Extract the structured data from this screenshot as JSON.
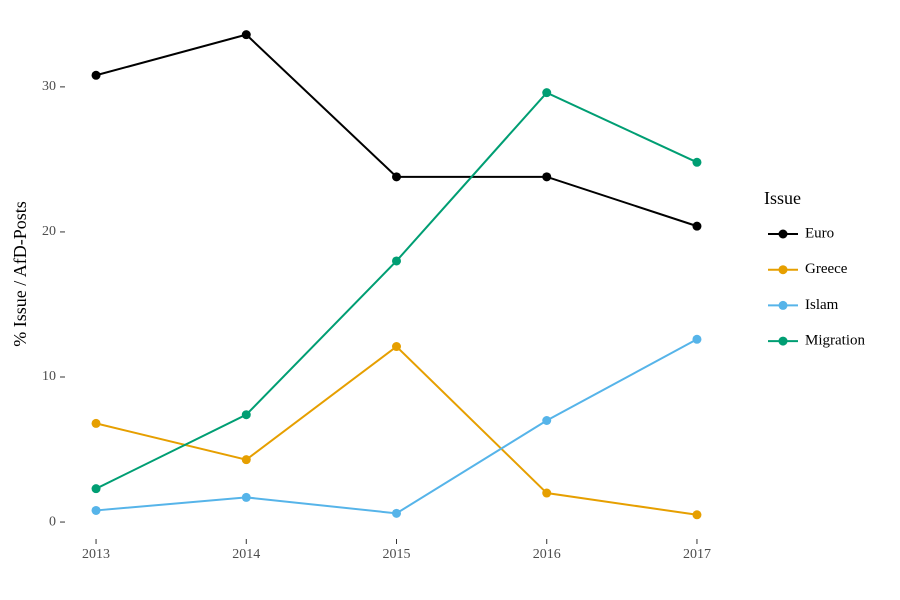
{
  "chart_data": {
    "type": "line",
    "y_label": "% Issue / AfD-Posts",
    "legend_title": "Issue",
    "x": [
      2013,
      2014,
      2015,
      2016,
      2017
    ],
    "xlim": [
      2012.8,
      2017.2
    ],
    "xticks": [
      2013,
      2014,
      2015,
      2016,
      2017
    ],
    "ylim": [
      -1.1,
      35.3
    ],
    "yticks": [
      0,
      10,
      20,
      30
    ],
    "grid": false,
    "legend": "right",
    "series": [
      {
        "name": "Euro",
        "color": "#000000",
        "values": [
          30.8,
          33.6,
          23.8,
          23.8,
          20.4
        ]
      },
      {
        "name": "Greece",
        "color": "#E69F00",
        "values": [
          6.8,
          4.3,
          12.1,
          2.0,
          0.5
        ]
      },
      {
        "name": "Islam",
        "color": "#56B4E9",
        "values": [
          0.8,
          1.7,
          0.6,
          7.0,
          12.6
        ]
      },
      {
        "name": "Migration",
        "color": "#009E73",
        "values": [
          2.3,
          7.4,
          18.0,
          29.6,
          24.8
        ]
      }
    ]
  }
}
